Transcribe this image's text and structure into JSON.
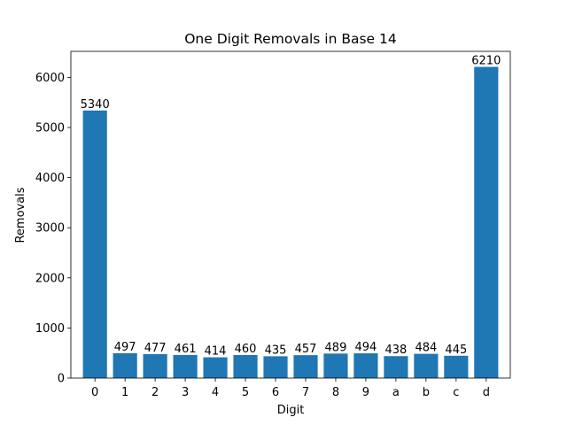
{
  "chart_data": {
    "type": "bar",
    "title": "One Digit Removals in Base 14",
    "xlabel": "Digit",
    "ylabel": "Removals",
    "categories": [
      "0",
      "1",
      "2",
      "3",
      "4",
      "5",
      "6",
      "7",
      "8",
      "9",
      "a",
      "b",
      "c",
      "d"
    ],
    "values": [
      5340,
      497,
      477,
      461,
      414,
      460,
      435,
      457,
      489,
      494,
      438,
      484,
      445,
      6210
    ],
    "data_labels": [
      "5340",
      "497",
      "477",
      "461",
      "414",
      "460",
      "435",
      "457",
      "489",
      "494",
      "438",
      "484",
      "445",
      "6210"
    ],
    "ylim": [
      0,
      6520
    ],
    "yticks": [
      0,
      1000,
      2000,
      3000,
      4000,
      5000,
      6000
    ],
    "ytick_labels": [
      "0",
      "1000",
      "2000",
      "3000",
      "4000",
      "5000",
      "6000"
    ],
    "grid": false,
    "legend": "none",
    "bar_color": "#1f77b4"
  }
}
